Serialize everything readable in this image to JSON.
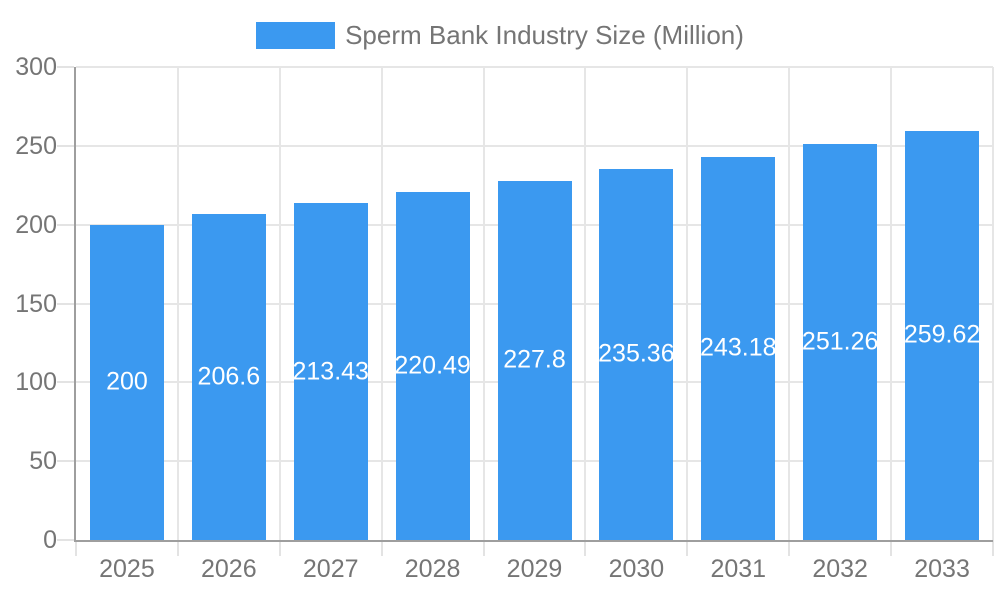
{
  "chart_data": {
    "type": "bar",
    "title": "Sperm Bank Industry Size (Million)",
    "categories": [
      "2025",
      "2026",
      "2027",
      "2028",
      "2029",
      "2030",
      "2031",
      "2032",
      "2033"
    ],
    "series": [
      {
        "name": "Sperm Bank Industry Size (Million)",
        "values": [
          200,
          206.6,
          213.43,
          220.49,
          227.8,
          235.36,
          243.18,
          251.26,
          259.62
        ]
      }
    ],
    "value_labels": [
      "200",
      "206.6",
      "213.43",
      "220.49",
      "227.8",
      "235.36",
      "243.18",
      "251.26",
      "259.62"
    ],
    "xlabel": "",
    "ylabel": "",
    "ylim": [
      0,
      300
    ],
    "y_ticks": [
      0,
      50,
      100,
      150,
      200,
      250,
      300
    ],
    "grid": true,
    "legend_position": "top-center",
    "colors": {
      "bar": "#3b99f0",
      "axis_line": "#9e9e9e",
      "gridline": "#e6e6e6",
      "tick": "#e3e3e3",
      "axis_label": "#757575",
      "legend_text": "#757575",
      "value_label": "#ffffff",
      "background": "#ffffff"
    }
  }
}
